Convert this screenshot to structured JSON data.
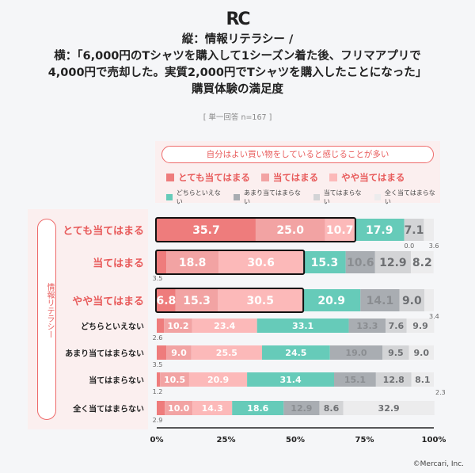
{
  "logo": "RC",
  "chart_data": {
    "type": "bar",
    "orientation": "horizontal",
    "stacked": true,
    "title_lines": [
      "縦：情報リテラシー /",
      "横：「6,000円のTシャツを購入して1シーズン着た後、フリマアプリで",
      "4,000円で売却した。実質2,000円でTシャツを購入したことになった」",
      "購買体験の満足度"
    ],
    "subtitle": "[ 単一回答 n=167 ]",
    "vertical_axis_title": "情報リテラシー",
    "callout": "自分はよい買い物をしていると感じることが多い",
    "categories": [
      "とても当てはまる",
      "当てはまる",
      "やや当てはまる",
      "どちらといえない",
      "あまり当てはまらない",
      "当てはまらない",
      "全く当てはまらない"
    ],
    "highlighted_categories": 3,
    "series": [
      {
        "name": "とても当てはまる",
        "color": "#ee7c7c",
        "values": [
          35.7,
          3.5,
          6.8,
          2.6,
          3.5,
          1.2,
          2.9
        ]
      },
      {
        "name": "当てはまる",
        "color": "#f2a3a3",
        "values": [
          25.0,
          18.8,
          15.3,
          10.2,
          9.0,
          10.5,
          10.0
        ]
      },
      {
        "name": "やや当てはまる",
        "color": "#fcb9b9",
        "values": [
          10.7,
          30.6,
          30.5,
          23.4,
          25.5,
          20.9,
          14.3
        ]
      },
      {
        "name": "どちらといえない",
        "color": "#66cbb9",
        "values": [
          17.9,
          15.3,
          20.9,
          33.1,
          24.5,
          31.4,
          18.6
        ]
      },
      {
        "name": "あまり当てはまらない",
        "color": "#a9adb2",
        "values": [
          0.0,
          10.6,
          14.1,
          13.3,
          19.0,
          15.1,
          12.9
        ]
      },
      {
        "name": "当てはまらない",
        "color": "#d3d4d6",
        "values": [
          7.1,
          12.9,
          9.0,
          7.6,
          9.5,
          12.8,
          8.6
        ]
      },
      {
        "name": "全く当てはまらない",
        "color": "#ececed",
        "values": [
          3.6,
          8.2,
          3.4,
          9.9,
          9.0,
          8.1,
          32.9
        ]
      }
    ],
    "extra_annotations": [
      {
        "category": "当てはまらない",
        "text": "2.3"
      }
    ],
    "xlim": [
      0,
      100
    ],
    "xticks": [
      "0%",
      "25%",
      "50%",
      "75%",
      "100%"
    ],
    "grid": false
  },
  "footer": "©Mercari, Inc."
}
